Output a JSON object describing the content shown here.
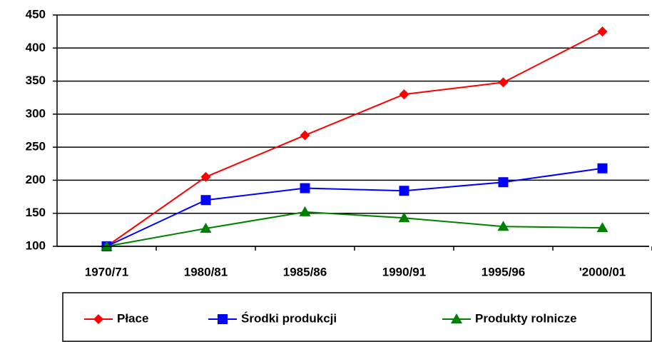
{
  "chart_data": {
    "type": "line",
    "categories": [
      "1970/71",
      "1980/81",
      "1985/86",
      "1990/91",
      "1995/96",
      "'2000/01"
    ],
    "series": [
      {
        "name": "Płace",
        "color": "#ff0000",
        "marker": "diamond",
        "values": [
          100,
          205,
          268,
          330,
          348,
          425
        ]
      },
      {
        "name": "Środki produkcji",
        "color": "#0000ff",
        "marker": "square",
        "values": [
          100,
          170,
          188,
          184,
          197,
          218
        ]
      },
      {
        "name": "Produkty rolnicze",
        "color": "#008000",
        "marker": "triangle",
        "values": [
          100,
          127,
          152,
          143,
          130,
          128
        ]
      }
    ],
    "ylim": [
      100,
      450
    ],
    "yticks": [
      100,
      150,
      200,
      250,
      300,
      350,
      400,
      450
    ],
    "grid": true,
    "legend": "bottom"
  }
}
